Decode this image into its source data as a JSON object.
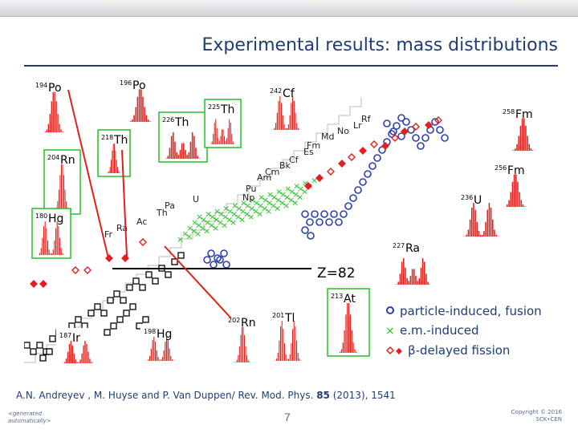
{
  "slide": {
    "title": "Experimental results: mass distributions",
    "reference_authors": "A.N. Andreyev , M. Huyse and P. Van Duppen/ Rev. Mod. Phys. ",
    "reference_volume": "85",
    "reference_tail": " (2013), 1541",
    "generated_line1": "<generated",
    "generated_line2": "automatically>",
    "page_number": "7",
    "copyright_line1": "Copyright © 2016",
    "copyright_line2": "SCK•CEN"
  },
  "figure": {
    "z_label": "Z=82",
    "legend": {
      "particle": "particle-induced, fusion",
      "em": "e.m.-induced",
      "beta": "β-delayed fission"
    },
    "insets": {
      "po194": {
        "mass": "194",
        "sym": "Po"
      },
      "po196": {
        "mass": "196",
        "sym": "Po"
      },
      "rn204": {
        "mass": "204",
        "sym": "Rn"
      },
      "th218": {
        "mass": "218",
        "sym": "Th"
      },
      "th226": {
        "mass": "226",
        "sym": "Th"
      },
      "th225": {
        "mass": "225",
        "sym": "Th"
      },
      "cf242": {
        "mass": "242",
        "sym": "Cf"
      },
      "fm258": {
        "mass": "258",
        "sym": "Fm"
      },
      "fm256": {
        "mass": "256",
        "sym": "Fm"
      },
      "u236": {
        "mass": "236",
        "sym": "U"
      },
      "hg180": {
        "mass": "180",
        "sym": "Hg"
      },
      "ra227": {
        "mass": "227",
        "sym": "Ra"
      },
      "at213": {
        "mass": "213",
        "sym": "At"
      },
      "rn202": {
        "mass": "202",
        "sym": "Rn"
      },
      "tl201": {
        "mass": "201",
        "sym": "Tl"
      },
      "hg198": {
        "mass": "198",
        "sym": "Hg"
      },
      "ir187": {
        "mass": "187",
        "sym": "Ir"
      }
    },
    "elements": [
      "Rf",
      "Lr",
      "No",
      "Md",
      "Fm",
      "Es",
      "Cf",
      "Bk",
      "Cm",
      "Am",
      "Pu",
      "Np",
      "U",
      "Pa",
      "Th",
      "Ac",
      "Ra",
      "Fr"
    ],
    "colors": {
      "navy": "#1f3c73",
      "red": "#e0201c",
      "blue": "#2a3fb0",
      "green": "#22c022",
      "purple": "#8a2be2"
    }
  }
}
